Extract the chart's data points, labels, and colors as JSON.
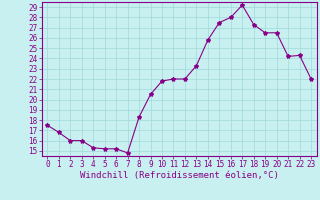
{
  "x": [
    0,
    1,
    2,
    3,
    4,
    5,
    6,
    7,
    8,
    9,
    10,
    11,
    12,
    13,
    14,
    15,
    16,
    17,
    18,
    19,
    20,
    21,
    22,
    23
  ],
  "y": [
    17.5,
    16.8,
    16.0,
    16.0,
    15.3,
    15.2,
    15.2,
    14.8,
    18.3,
    20.5,
    21.8,
    22.0,
    22.0,
    23.3,
    25.8,
    27.5,
    28.0,
    29.2,
    27.3,
    26.5,
    26.5,
    24.2,
    24.3,
    22.0
  ],
  "line_color": "#880088",
  "marker": "*",
  "marker_size": 3,
  "bg_color": "#c8f0f0",
  "grid_color": "#a0d8d8",
  "xlabel": "Windchill (Refroidissement éolien,°C)",
  "xlim": [
    -0.5,
    23.5
  ],
  "ylim": [
    14.5,
    29.5
  ],
  "yticks": [
    15,
    16,
    17,
    18,
    19,
    20,
    21,
    22,
    23,
    24,
    25,
    26,
    27,
    28,
    29
  ],
  "xticks": [
    0,
    1,
    2,
    3,
    4,
    5,
    6,
    7,
    8,
    9,
    10,
    11,
    12,
    13,
    14,
    15,
    16,
    17,
    18,
    19,
    20,
    21,
    22,
    23
  ],
  "tick_color": "#880088",
  "spine_color": "#880088",
  "font_color": "#880088",
  "tick_fontsize": 5.5,
  "xlabel_fontsize": 6.5
}
